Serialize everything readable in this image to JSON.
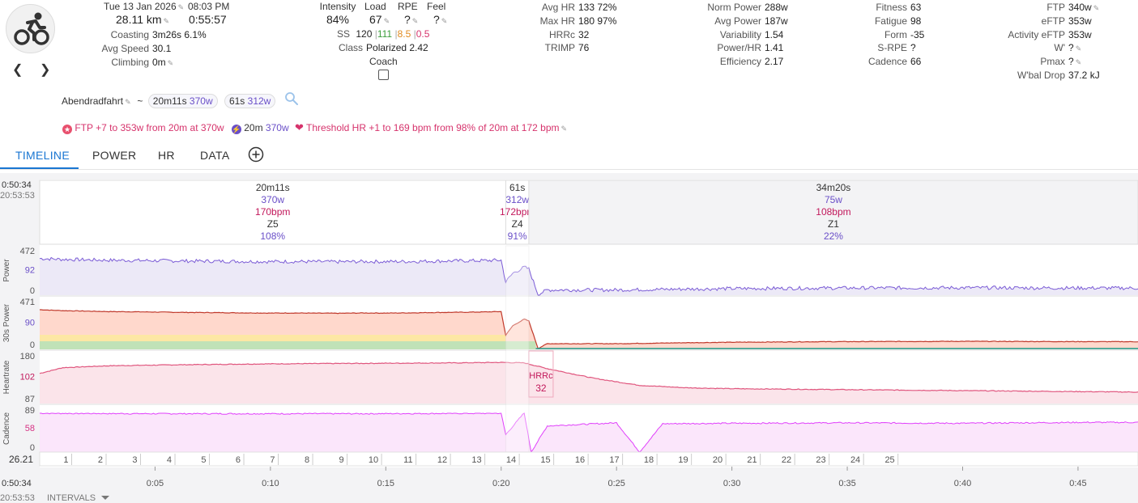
{
  "header": {
    "date": "Tue 13 Jan 2026",
    "time": "08:03 PM",
    "distance": "28.11 km",
    "duration": "0:55:57",
    "left_stats": [
      {
        "label": "Coasting",
        "value": "3m26s 6.1%"
      },
      {
        "label": "Avg Speed",
        "value": "30.1"
      },
      {
        "label": "Climbing",
        "value": "0m"
      }
    ],
    "intensity": {
      "label": "Intensity",
      "value": "84%"
    },
    "load": {
      "label": "Load",
      "value": "67"
    },
    "rpe": {
      "label": "RPE",
      "value": "?"
    },
    "feel": {
      "label": "Feel",
      "value": "?"
    },
    "ss": {
      "label": "SS",
      "v1": "120",
      "v2": "111",
      "v3": "8.5",
      "v4": "0.5"
    },
    "class": {
      "label": "Class",
      "value": "Polarized 2.42"
    },
    "coach": {
      "label": "Coach"
    },
    "hr_stats": [
      {
        "label": "Avg HR",
        "value": "133 72%"
      },
      {
        "label": "Max HR",
        "value": "180 97%"
      },
      {
        "label": "HRRc",
        "value": "32"
      },
      {
        "label": "TRIMP",
        "value": "76"
      }
    ],
    "power_stats": [
      {
        "label": "Norm Power",
        "value": "288w"
      },
      {
        "label": "Avg Power",
        "value": "187w"
      },
      {
        "label": "Variability",
        "value": "1.54"
      },
      {
        "label": "Power/HR",
        "value": "1.41"
      },
      {
        "label": "Efficiency",
        "value": "2.17"
      }
    ],
    "fitness_stats": [
      {
        "label": "Fitness",
        "value": "63"
      },
      {
        "label": "Fatigue",
        "value": "98"
      },
      {
        "label": "Form",
        "value": "-35"
      },
      {
        "label": "S-RPE",
        "value": "?"
      },
      {
        "label": "Cadence",
        "value": "66"
      }
    ],
    "ftp_stats": [
      {
        "label": "FTP",
        "value": "340w"
      },
      {
        "label": "eFTP",
        "value": "353w"
      },
      {
        "label": "Activity eFTP",
        "value": "353w"
      },
      {
        "label": "W'",
        "value": "?"
      },
      {
        "label": "Pmax",
        "value": "?"
      },
      {
        "label": "W'bal Drop",
        "value": "37.2 kJ"
      }
    ]
  },
  "activity": {
    "name": "Abendradfahrt",
    "tilde": "~",
    "chip1": {
      "dur": "20m11s",
      "power": "370w"
    },
    "chip2": {
      "dur": "61s",
      "power": "312w"
    }
  },
  "achievements": {
    "ftp": "FTP +7 to 353w from 20m at 370w",
    "best": {
      "dur": "20m",
      "power": "370w"
    },
    "hr": "Threshold HR +1 to 169 bpm from 98% of 20m at 172 bpm"
  },
  "tabs": [
    "TIMELINE",
    "POWER",
    "HR",
    "DATA"
  ],
  "colors": {
    "accent": "#1976d2",
    "power": "#7b5cd6",
    "hr": "#d6336c",
    "cadence": "#e040fb"
  },
  "chart_data": {
    "type": "line",
    "time_start": "0:50:34",
    "clock_start": "20:53:53",
    "intervals": [
      {
        "duration": "20m11s",
        "power": "370w",
        "hr": "170bpm",
        "zone": "Z5",
        "pct": "108%",
        "start_min": 0,
        "end_min": 20.2
      },
      {
        "duration": "61s",
        "power": "312w",
        "hr": "172bpm",
        "zone": "Z4",
        "pct": "91%",
        "start_min": 20.2,
        "end_min": 21.2
      },
      {
        "duration": "34m20s",
        "power": "75w",
        "hr": "108bpm",
        "zone": "Z1",
        "pct": "22%",
        "start_min": 21.2,
        "end_min": 55.95
      }
    ],
    "panels": [
      {
        "name": "Power",
        "ticks": [
          "472",
          "92",
          "0"
        ]
      },
      {
        "name": "30s Power",
        "ticks": [
          "471",
          "90",
          "0"
        ]
      },
      {
        "name": "Heartrate",
        "ticks": [
          "180",
          "102",
          "87"
        ]
      },
      {
        "name": "Cadence",
        "ticks": [
          "89",
          "58",
          "0"
        ]
      }
    ],
    "hrrc_label": "HRRc",
    "hrrc_value": "32",
    "distance_start": "26.21",
    "km_markers": [
      "1",
      "2",
      "3",
      "4",
      "5",
      "6",
      "7",
      "8",
      "9",
      "10",
      "11",
      "12",
      "13",
      "14",
      "15",
      "16",
      "17",
      "18",
      "19",
      "20",
      "21",
      "22",
      "23",
      "24",
      "25"
    ],
    "time_ticks": [
      "0:05",
      "0:10",
      "0:15",
      "0:20",
      "0:25",
      "0:30",
      "0:35",
      "0:40",
      "0:45"
    ],
    "power_series_w": [
      [
        0,
        420
      ],
      [
        1,
        410
      ],
      [
        2,
        405
      ],
      [
        3,
        400
      ],
      [
        4,
        398
      ],
      [
        5,
        395
      ],
      [
        6,
        392
      ],
      [
        7,
        390
      ],
      [
        8,
        388
      ],
      [
        9,
        386
      ],
      [
        10,
        384
      ],
      [
        11,
        385
      ],
      [
        12,
        383
      ],
      [
        13,
        382
      ],
      [
        14,
        385
      ],
      [
        15,
        384
      ],
      [
        16,
        386
      ],
      [
        17,
        390
      ],
      [
        18,
        392
      ],
      [
        19,
        395
      ],
      [
        20,
        400
      ],
      [
        20.2,
        150
      ],
      [
        20.5,
        250
      ],
      [
        21,
        320
      ],
      [
        21.2,
        300
      ],
      [
        21.6,
        10
      ],
      [
        22,
        60
      ],
      [
        25,
        60
      ],
      [
        28,
        70
      ],
      [
        30,
        75
      ],
      [
        33,
        80
      ],
      [
        35,
        82
      ],
      [
        40,
        85
      ],
      [
        45,
        82
      ],
      [
        50,
        80
      ],
      [
        55,
        78
      ]
    ],
    "hr_series_bpm": [
      [
        0,
        150
      ],
      [
        1,
        162
      ],
      [
        3,
        166
      ],
      [
        6,
        168
      ],
      [
        10,
        170
      ],
      [
        14,
        171
      ],
      [
        18,
        172
      ],
      [
        20,
        173
      ],
      [
        21,
        172
      ],
      [
        22,
        160
      ],
      [
        24,
        140
      ],
      [
        26,
        125
      ],
      [
        28,
        120
      ],
      [
        30,
        118
      ],
      [
        35,
        116
      ],
      [
        40,
        114
      ],
      [
        45,
        112
      ],
      [
        50,
        110
      ],
      [
        55,
        105
      ]
    ],
    "cadence_series_rpm": [
      [
        0,
        89
      ],
      [
        5,
        88
      ],
      [
        10,
        88
      ],
      [
        14,
        88
      ],
      [
        20,
        89
      ],
      [
        20.2,
        40
      ],
      [
        21,
        90
      ],
      [
        21.3,
        0
      ],
      [
        22,
        60
      ],
      [
        25,
        67
      ],
      [
        26,
        0
      ],
      [
        27,
        65
      ],
      [
        30,
        66
      ],
      [
        35,
        67
      ],
      [
        40,
        66
      ],
      [
        45,
        68
      ],
      [
        50,
        68
      ],
      [
        55,
        67
      ]
    ]
  },
  "footer": {
    "time": "0:50:34",
    "clock": "20:53:53",
    "intervals_label": "INTERVALS"
  }
}
